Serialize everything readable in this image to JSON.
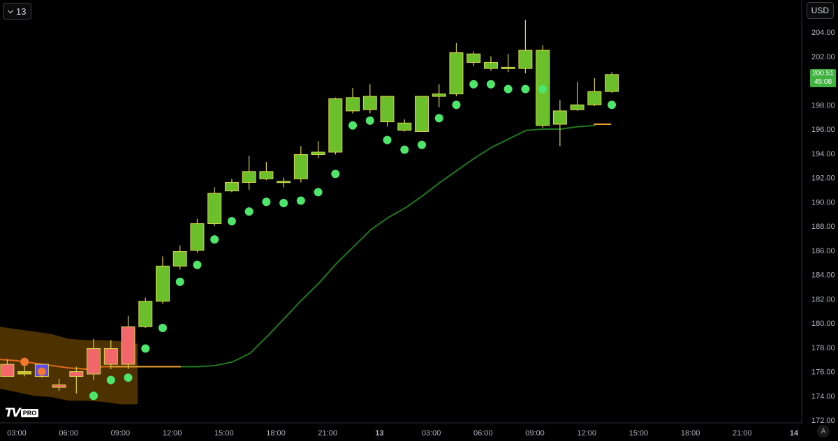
{
  "toolbar": {
    "interval_label": "13",
    "currency_label": "USD"
  },
  "logo": {
    "text": "TV",
    "badge": "PRO"
  },
  "price_tag": {
    "price": "200.51",
    "countdown": "45:08",
    "color": "#3fb23f"
  },
  "auto_label": "A",
  "chart_data": {
    "type": "candlestick",
    "title": "",
    "y_axis": {
      "side": "right",
      "range": [
        172,
        205.5
      ],
      "ticks": [
        "172.00",
        "174.00",
        "176.00",
        "178.00",
        "180.00",
        "182.00",
        "184.00",
        "186.00",
        "188.00",
        "190.00",
        "192.00",
        "194.00",
        "196.00",
        "198.00",
        "200.00",
        "202.00",
        "204.00"
      ]
    },
    "x_axis": {
      "range_hours": [
        2.5,
        62.5
      ],
      "ticks": [
        {
          "label": "03:00",
          "t": 3
        },
        {
          "label": "06:00",
          "t": 6
        },
        {
          "label": "09:00",
          "t": 9
        },
        {
          "label": "12:00",
          "t": 12
        },
        {
          "label": "15:00",
          "t": 15
        },
        {
          "label": "18:00",
          "t": 18
        },
        {
          "label": "21:00",
          "t": 21
        },
        {
          "label": "13",
          "t": 24
        },
        {
          "label": "03:00",
          "t": 27
        },
        {
          "label": "06:00",
          "t": 30
        },
        {
          "label": "09:00",
          "t": 33
        },
        {
          "label": "12:00",
          "t": 36
        },
        {
          "label": "15:00",
          "t": 39
        },
        {
          "label": "18:00",
          "t": 42
        },
        {
          "label": "21:00",
          "t": 45
        },
        {
          "label": "14",
          "t": 48
        }
      ]
    },
    "colors": {
      "up": "#6bbf2b",
      "down": "#f2676a",
      "neutral": "#5b4df0",
      "wick": "#d9d44a",
      "dots": "#4ee66a",
      "ma": "#1f7a1f",
      "band": "#5c3a00",
      "band_line": "#e06a1a",
      "level": "#f0a030"
    },
    "candles": [
      {
        "t": 2.45,
        "o": 176.6,
        "h": 177.0,
        "l": 175.6,
        "c": 175.6,
        "color": "down"
      },
      {
        "t": 3.45,
        "o": 175.8,
        "h": 176.6,
        "l": 175.6,
        "c": 176.0,
        "color": "neutral_up"
      },
      {
        "t": 4.45,
        "o": 176.6,
        "h": 176.6,
        "l": 175.5,
        "c": 175.6,
        "color": "neutral"
      },
      {
        "t": 5.45,
        "o": 174.7,
        "h": 175.4,
        "l": 174.4,
        "c": 174.9,
        "color": "down"
      },
      {
        "t": 6.45,
        "o": 175.6,
        "h": 176.4,
        "l": 174.2,
        "c": 176.0,
        "color": "down"
      },
      {
        "t": 7.45,
        "o": 175.8,
        "h": 178.7,
        "l": 175.3,
        "c": 177.9,
        "color": "down"
      },
      {
        "t": 8.45,
        "o": 176.6,
        "h": 178.6,
        "l": 176.2,
        "c": 177.9,
        "color": "down"
      },
      {
        "t": 9.45,
        "o": 176.6,
        "h": 180.6,
        "l": 176.2,
        "c": 179.7,
        "color": "down"
      },
      {
        "t": 10.45,
        "o": 179.7,
        "h": 182.1,
        "l": 179.6,
        "c": 181.8,
        "color": "up"
      },
      {
        "t": 11.45,
        "o": 181.8,
        "h": 185.5,
        "l": 181.6,
        "c": 184.7,
        "color": "up"
      },
      {
        "t": 12.45,
        "o": 184.7,
        "h": 186.4,
        "l": 184.4,
        "c": 185.9,
        "color": "up"
      },
      {
        "t": 13.45,
        "o": 186.0,
        "h": 188.6,
        "l": 185.8,
        "c": 188.2,
        "color": "up"
      },
      {
        "t": 14.45,
        "o": 188.2,
        "h": 191.2,
        "l": 188.0,
        "c": 190.7,
        "color": "up"
      },
      {
        "t": 15.45,
        "o": 190.9,
        "h": 191.9,
        "l": 190.8,
        "c": 191.6,
        "color": "up"
      },
      {
        "t": 16.45,
        "o": 191.6,
        "h": 193.8,
        "l": 191.0,
        "c": 192.5,
        "color": "up"
      },
      {
        "t": 17.45,
        "o": 191.9,
        "h": 193.3,
        "l": 191.8,
        "c": 192.5,
        "color": "up"
      },
      {
        "t": 18.45,
        "o": 191.6,
        "h": 192.0,
        "l": 191.2,
        "c": 191.7,
        "color": "up"
      },
      {
        "t": 19.45,
        "o": 191.9,
        "h": 194.6,
        "l": 191.6,
        "c": 193.9,
        "color": "up"
      },
      {
        "t": 20.45,
        "o": 193.9,
        "h": 195.0,
        "l": 193.6,
        "c": 194.1,
        "color": "up"
      },
      {
        "t": 21.45,
        "o": 194.1,
        "h": 198.6,
        "l": 193.9,
        "c": 198.5,
        "color": "up"
      },
      {
        "t": 22.45,
        "o": 197.5,
        "h": 199.4,
        "l": 197.3,
        "c": 198.6,
        "color": "up"
      },
      {
        "t": 23.45,
        "o": 197.6,
        "h": 199.7,
        "l": 197.3,
        "c": 198.7,
        "color": "up"
      },
      {
        "t": 24.45,
        "o": 198.7,
        "h": 198.7,
        "l": 196.2,
        "c": 196.6,
        "color": "up"
      },
      {
        "t": 25.45,
        "o": 195.9,
        "h": 196.8,
        "l": 195.8,
        "c": 196.5,
        "color": "up"
      },
      {
        "t": 26.45,
        "o": 195.8,
        "h": 198.7,
        "l": 195.8,
        "c": 198.7,
        "color": "up"
      },
      {
        "t": 27.45,
        "o": 198.7,
        "h": 199.7,
        "l": 197.8,
        "c": 198.9,
        "color": "up"
      },
      {
        "t": 28.45,
        "o": 198.9,
        "h": 203.1,
        "l": 198.7,
        "c": 202.3,
        "color": "up"
      },
      {
        "t": 29.45,
        "o": 201.5,
        "h": 202.4,
        "l": 201.2,
        "c": 202.2,
        "color": "up"
      },
      {
        "t": 30.45,
        "o": 201.0,
        "h": 202.0,
        "l": 200.8,
        "c": 201.5,
        "color": "up"
      },
      {
        "t": 31.45,
        "o": 201.0,
        "h": 202.2,
        "l": 200.7,
        "c": 201.1,
        "color": "up"
      },
      {
        "t": 32.45,
        "o": 201.0,
        "h": 205.0,
        "l": 200.6,
        "c": 202.5,
        "color": "up"
      },
      {
        "t": 33.45,
        "o": 202.5,
        "h": 202.9,
        "l": 196.1,
        "c": 196.3,
        "color": "up"
      },
      {
        "t": 34.45,
        "o": 196.4,
        "h": 198.4,
        "l": 194.6,
        "c": 197.5,
        "color": "up"
      },
      {
        "t": 35.45,
        "o": 197.6,
        "h": 199.9,
        "l": 197.5,
        "c": 198.0,
        "color": "up"
      },
      {
        "t": 36.45,
        "o": 198.0,
        "h": 200.2,
        "l": 197.9,
        "c": 199.1,
        "color": "up"
      },
      {
        "t": 37.45,
        "o": 199.1,
        "h": 200.7,
        "l": 199.0,
        "c": 200.5,
        "color": "up"
      }
    ],
    "dots": [
      {
        "t": 3.45,
        "y": 176.8,
        "color": "#f2772f"
      },
      {
        "t": 4.45,
        "y": 176.0,
        "color": "#f2772f"
      },
      {
        "t": 7.45,
        "y": 174.0
      },
      {
        "t": 8.45,
        "y": 175.3
      },
      {
        "t": 9.45,
        "y": 175.5
      },
      {
        "t": 10.45,
        "y": 177.9
      },
      {
        "t": 11.45,
        "y": 179.6
      },
      {
        "t": 12.45,
        "y": 183.4
      },
      {
        "t": 13.45,
        "y": 184.8
      },
      {
        "t": 14.45,
        "y": 186.9
      },
      {
        "t": 15.45,
        "y": 188.4
      },
      {
        "t": 16.45,
        "y": 189.2
      },
      {
        "t": 17.45,
        "y": 190.0
      },
      {
        "t": 18.45,
        "y": 189.9
      },
      {
        "t": 19.45,
        "y": 190.1
      },
      {
        "t": 20.45,
        "y": 190.8
      },
      {
        "t": 21.45,
        "y": 192.3
      },
      {
        "t": 22.45,
        "y": 196.3
      },
      {
        "t": 23.45,
        "y": 196.7
      },
      {
        "t": 24.45,
        "y": 195.1
      },
      {
        "t": 25.45,
        "y": 194.3
      },
      {
        "t": 26.45,
        "y": 194.7
      },
      {
        "t": 27.45,
        "y": 196.9
      },
      {
        "t": 28.45,
        "y": 198.0
      },
      {
        "t": 29.45,
        "y": 199.7
      },
      {
        "t": 30.45,
        "y": 199.7
      },
      {
        "t": 31.45,
        "y": 199.3
      },
      {
        "t": 32.45,
        "y": 199.3
      },
      {
        "t": 33.45,
        "y": 199.3
      },
      {
        "t": 37.45,
        "y": 198.0
      }
    ],
    "ma_line": [
      {
        "t": 12.5,
        "y": 176.4
      },
      {
        "t": 13.5,
        "y": 176.4
      },
      {
        "t": 14.5,
        "y": 176.5
      },
      {
        "t": 15.5,
        "y": 176.8
      },
      {
        "t": 16.5,
        "y": 177.5
      },
      {
        "t": 17.5,
        "y": 178.9
      },
      {
        "t": 18.5,
        "y": 180.4
      },
      {
        "t": 19.5,
        "y": 181.9
      },
      {
        "t": 20.5,
        "y": 183.3
      },
      {
        "t": 21.5,
        "y": 184.9
      },
      {
        "t": 22.5,
        "y": 186.3
      },
      {
        "t": 23.5,
        "y": 187.7
      },
      {
        "t": 24.5,
        "y": 188.7
      },
      {
        "t": 25.5,
        "y": 189.5
      },
      {
        "t": 26.5,
        "y": 190.5
      },
      {
        "t": 27.5,
        "y": 191.6
      },
      {
        "t": 28.5,
        "y": 192.6
      },
      {
        "t": 29.5,
        "y": 193.6
      },
      {
        "t": 30.5,
        "y": 194.5
      },
      {
        "t": 31.5,
        "y": 195.2
      },
      {
        "t": 32.5,
        "y": 195.9
      },
      {
        "t": 33.5,
        "y": 196.0
      },
      {
        "t": 34.5,
        "y": 196.0
      },
      {
        "t": 35.5,
        "y": 196.2
      },
      {
        "t": 36.5,
        "y": 196.3
      }
    ],
    "band": {
      "top": [
        {
          "t": 2.0,
          "y": 179.7
        },
        {
          "t": 3.0,
          "y": 179.5
        },
        {
          "t": 4.0,
          "y": 179.3
        },
        {
          "t": 5.0,
          "y": 179.1
        },
        {
          "t": 6.0,
          "y": 178.7
        },
        {
          "t": 7.0,
          "y": 178.6
        },
        {
          "t": 8.0,
          "y": 178.6
        },
        {
          "t": 9.0,
          "y": 178.5
        },
        {
          "t": 10.0,
          "y": 178.3
        }
      ],
      "bottom": [
        {
          "t": 2.0,
          "y": 174.6
        },
        {
          "t": 3.0,
          "y": 174.3
        },
        {
          "t": 4.0,
          "y": 174.0
        },
        {
          "t": 5.0,
          "y": 173.9
        },
        {
          "t": 6.0,
          "y": 173.6
        },
        {
          "t": 7.0,
          "y": 173.6
        },
        {
          "t": 8.0,
          "y": 173.5
        },
        {
          "t": 9.0,
          "y": 173.3
        },
        {
          "t": 10.0,
          "y": 173.3
        }
      ],
      "mid": [
        {
          "t": 2.0,
          "y": 177.0
        },
        {
          "t": 3.0,
          "y": 176.9
        },
        {
          "t": 4.0,
          "y": 176.7
        },
        {
          "t": 5.0,
          "y": 176.5
        },
        {
          "t": 6.0,
          "y": 176.3
        },
        {
          "t": 7.0,
          "y": 176.2
        },
        {
          "t": 8.0,
          "y": 176.4
        },
        {
          "t": 9.0,
          "y": 176.4
        },
        {
          "t": 10.0,
          "y": 176.4
        }
      ]
    },
    "level_lines": [
      {
        "from": 8.5,
        "to": 12.5,
        "y": 176.4
      },
      {
        "from": 36.4,
        "to": 37.4,
        "y": 196.4
      }
    ]
  }
}
